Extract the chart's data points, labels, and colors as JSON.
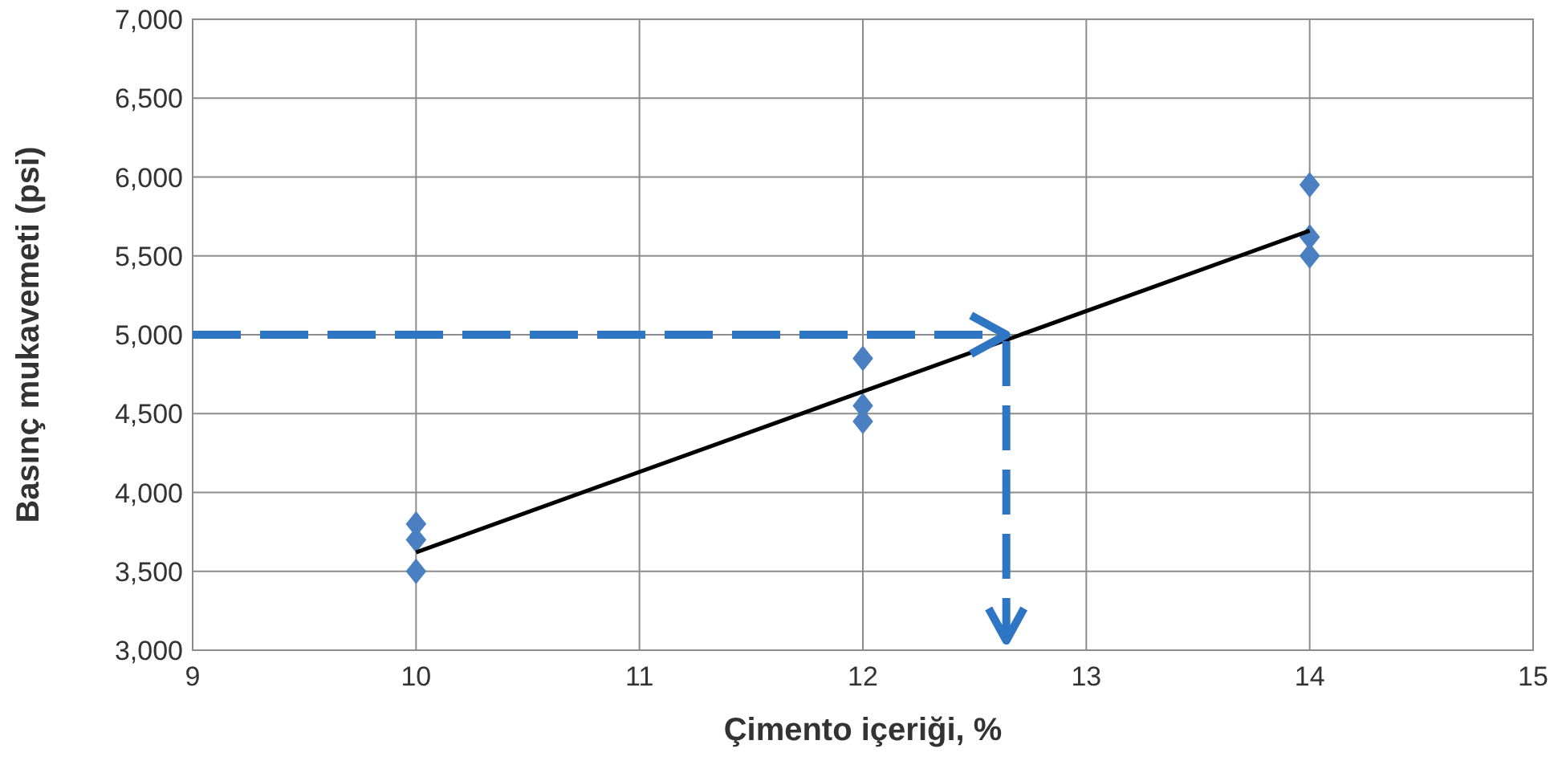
{
  "chart_data": {
    "type": "scatter",
    "xlabel": "Çimento içeriği, %",
    "ylabel": "Basınç mukavemeti (psi)",
    "xlim": [
      9,
      15
    ],
    "xticks": [
      9,
      10,
      11,
      12,
      13,
      14,
      15
    ],
    "ylim": [
      3000,
      7000
    ],
    "yticks": [
      {
        "value": 3000,
        "label": "3,000"
      },
      {
        "value": 3500,
        "label": "3,500"
      },
      {
        "value": 4000,
        "label": "4,000"
      },
      {
        "value": 4500,
        "label": "4,500"
      },
      {
        "value": 5000,
        "label": "5,000"
      },
      {
        "value": 5500,
        "label": "5,500"
      },
      {
        "value": 6000,
        "label": "6,000"
      },
      {
        "value": 6500,
        "label": "6,500"
      },
      {
        "value": 7000,
        "label": "7,000"
      }
    ],
    "grid": true,
    "marker": "diamond",
    "series": [
      {
        "type": "scatter",
        "color": "#4a7fc1",
        "x": [
          10,
          10,
          10,
          12,
          12,
          12,
          14,
          14,
          14
        ],
        "values": [
          3800,
          3700,
          3500,
          4850,
          4550,
          4450,
          5950,
          5620,
          5500
        ]
      },
      {
        "type": "line",
        "color": "#000000",
        "marker": "none",
        "x": [
          10,
          14
        ],
        "values": [
          3620,
          5660
        ]
      }
    ]
  }
}
